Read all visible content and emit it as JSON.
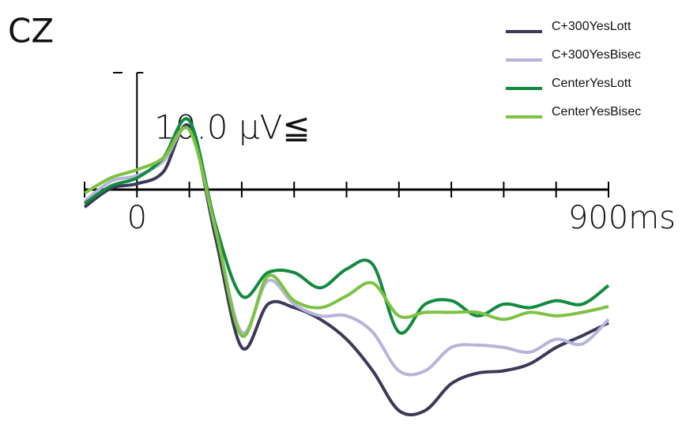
{
  "chart_data": {
    "type": "line",
    "title": "CZ",
    "x": [
      -100,
      -50,
      0,
      50,
      100,
      150,
      200,
      250,
      300,
      350,
      400,
      450,
      500,
      550,
      600,
      650,
      700,
      750,
      800,
      850,
      900
    ],
    "xlim": [
      -100,
      900
    ],
    "xticks": [
      {
        "value": -100,
        "label": null
      },
      0,
      {
        "value": 100,
        "label": null
      },
      {
        "value": 200,
        "label": null
      },
      {
        "value": 300,
        "label": null
      },
      {
        "value": 400,
        "label": null
      },
      {
        "value": 500,
        "label": null
      },
      {
        "value": 600,
        "label": null
      },
      {
        "value": 700,
        "label": null
      },
      {
        "value": 800,
        "label": null
      },
      {
        "value": 900,
        "label": "900ms"
      }
    ],
    "ylim": [
      -20,
      15
    ],
    "yticks": [
      {
        "value": 10,
        "label": "10.0 μV≦"
      }
    ],
    "legend": "top-right",
    "series": [
      {
        "name": "C+300YesLott",
        "color": "#3b3a57",
        "values": [
          -1.5,
          0.1,
          0.5,
          1.5,
          5.4,
          -4.1,
          -13.5,
          -9.8,
          -10.1,
          -11.1,
          -12.8,
          -15.5,
          -18.9,
          -18.9,
          -16.6,
          -15.7,
          -15.5,
          -14.9,
          -13.5,
          -12.5,
          -11.4
        ]
      },
      {
        "name": "C+300YesBisec",
        "color": "#b7b4dc",
        "values": [
          -1.0,
          0.7,
          1.2,
          2.4,
          5.1,
          -3.4,
          -12.2,
          -7.8,
          -9.8,
          -10.8,
          -10.8,
          -12.2,
          -15.5,
          -15.5,
          -13.5,
          -13.3,
          -13.5,
          -13.9,
          -12.8,
          -13.2,
          -11.1
        ]
      },
      {
        "name": "CenterYesLott",
        "color": "#138a3f",
        "values": [
          -1.2,
          0.3,
          1.0,
          2.7,
          5.9,
          -3.0,
          -9.1,
          -7.1,
          -7.1,
          -8.4,
          -6.8,
          -6.4,
          -12.2,
          -9.8,
          -9.5,
          -10.8,
          -9.8,
          -10.1,
          -9.5,
          -9.8,
          -8.2
        ]
      },
      {
        "name": "CenterYesBisec",
        "color": "#7dc242",
        "values": [
          -0.3,
          1.0,
          1.7,
          2.7,
          5.1,
          -3.4,
          -12.5,
          -7.4,
          -9.5,
          -10.1,
          -9.1,
          -8.0,
          -10.8,
          -10.5,
          -10.5,
          -10.5,
          -11.1,
          -10.5,
          -10.8,
          -10.5,
          -10.0
        ]
      }
    ]
  }
}
